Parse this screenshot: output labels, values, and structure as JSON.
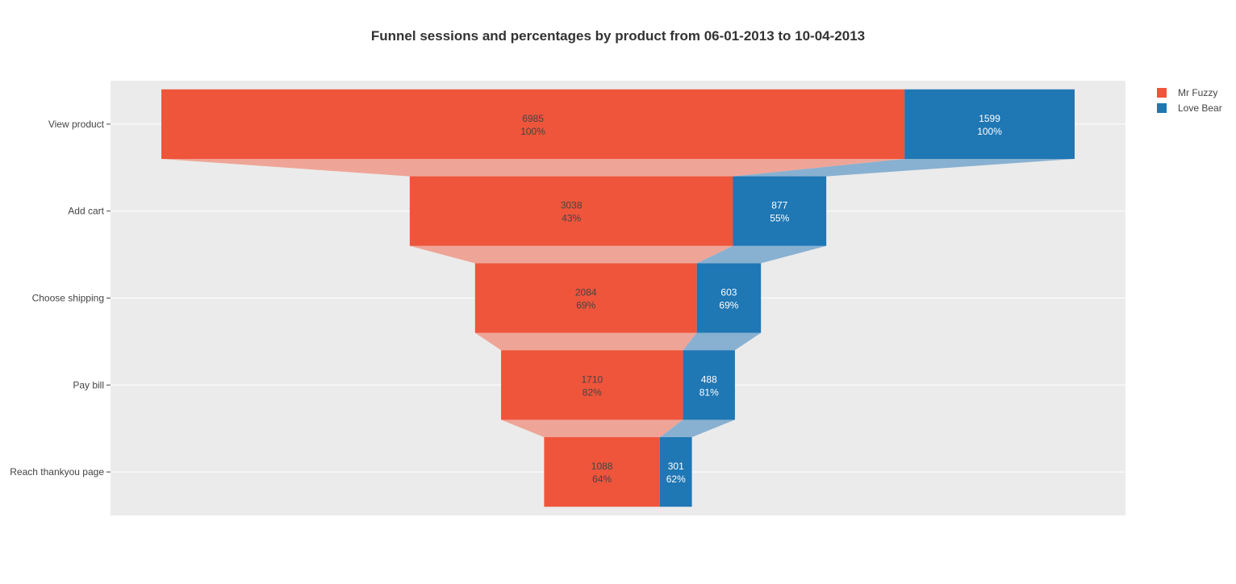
{
  "chart_data": {
    "type": "funnel",
    "title": "Funnel sessions and percentages by product from 06-01-2013 to 10-04-2013",
    "categories": [
      "View product",
      "Add cart",
      "Choose shipping",
      "Pay bill",
      "Reach thankyou page"
    ],
    "series": [
      {
        "name": "Mr Fuzzy",
        "color": "#EF553B",
        "connector_color": "#EEA597",
        "label_color": "#444444",
        "values": [
          6985,
          3038,
          2084,
          1710,
          1088
        ],
        "percent_labels": [
          "100%",
          "43%",
          "69%",
          "82%",
          "64%"
        ]
      },
      {
        "name": "Love Bear",
        "color": "#1F77B4",
        "connector_color": "#88B0D1",
        "label_color": "#ffffff",
        "values": [
          1599,
          877,
          603,
          488,
          301
        ],
        "percent_labels": [
          "100%",
          "55%",
          "69%",
          "81%",
          "62%"
        ]
      }
    ],
    "legend_position": "top-right",
    "plot_background": "#EBEBEB",
    "grid": true
  }
}
